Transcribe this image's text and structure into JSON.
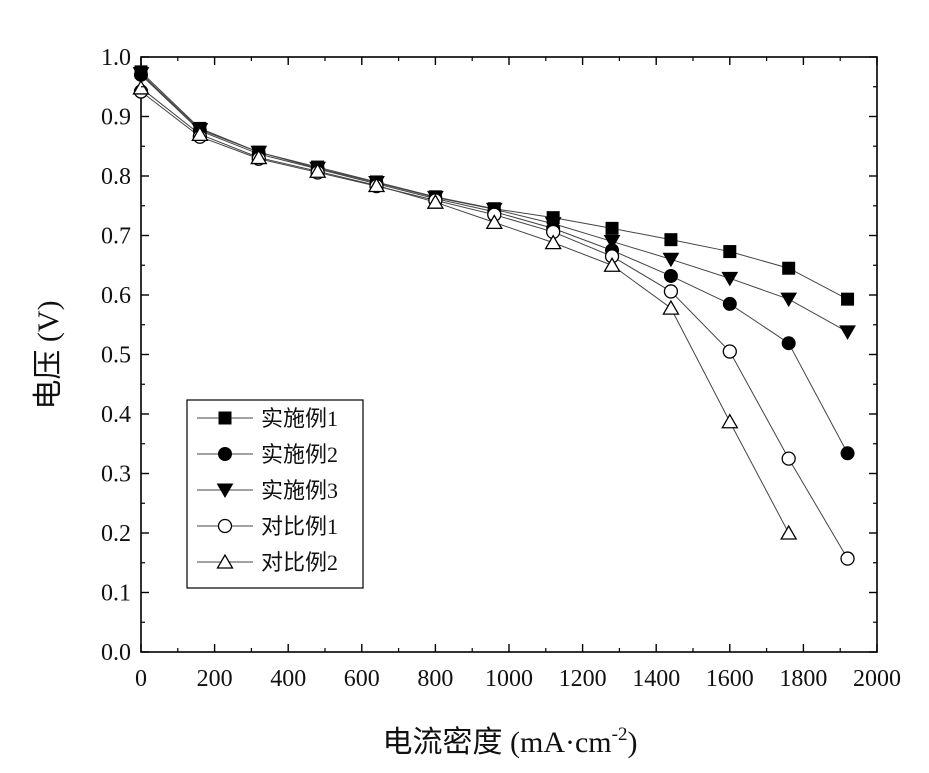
{
  "chart_data": {
    "type": "line",
    "xlabel": "电流密度 (mA·cm",
    "xlabel_sup": "-2",
    "xlabel_close": ")",
    "ylabel": "电压 (V)",
    "xlim": [
      0,
      2000
    ],
    "ylim": [
      0.0,
      1.0
    ],
    "xticks": [
      "0",
      "200",
      "400",
      "600",
      "800",
      "1000",
      "1200",
      "1400",
      "1600",
      "1800",
      "2000"
    ],
    "yticks": [
      "0.0",
      "0.1",
      "0.2",
      "0.3",
      "0.4",
      "0.5",
      "0.6",
      "0.7",
      "0.8",
      "0.9",
      "1.0"
    ],
    "grid": false,
    "legend_position": "lower-left",
    "series": [
      {
        "name": "实施例1",
        "marker": "square-filled",
        "x": [
          0,
          160,
          320,
          480,
          640,
          800,
          960,
          1120,
          1280,
          1440,
          1600,
          1760,
          1920
        ],
        "y": [
          0.975,
          0.88,
          0.84,
          0.815,
          0.79,
          0.765,
          0.745,
          0.73,
          0.712,
          0.693,
          0.673,
          0.645,
          0.593
        ]
      },
      {
        "name": "实施例2",
        "marker": "circle-filled",
        "x": [
          0,
          160,
          320,
          480,
          640,
          800,
          960,
          1120,
          1280,
          1440,
          1600,
          1760,
          1920
        ],
        "y": [
          0.97,
          0.876,
          0.837,
          0.812,
          0.787,
          0.762,
          0.74,
          0.712,
          0.675,
          0.632,
          0.585,
          0.519,
          0.334
        ]
      },
      {
        "name": "实施例3",
        "marker": "triangle-down-filled",
        "x": [
          0,
          160,
          320,
          480,
          640,
          800,
          960,
          1120,
          1280,
          1440,
          1600,
          1760,
          1920
        ],
        "y": [
          0.972,
          0.878,
          0.84,
          0.813,
          0.789,
          0.764,
          0.744,
          0.72,
          0.69,
          0.66,
          0.628,
          0.593,
          0.538
        ]
      },
      {
        "name": "对比例1",
        "marker": "circle-open",
        "x": [
          0,
          160,
          320,
          480,
          640,
          800,
          960,
          1120,
          1280,
          1440,
          1600,
          1760,
          1920
        ],
        "y": [
          0.942,
          0.866,
          0.829,
          0.806,
          0.783,
          0.759,
          0.735,
          0.706,
          0.665,
          0.606,
          0.505,
          0.325,
          0.157
        ]
      },
      {
        "name": "对比例2",
        "marker": "triangle-up-open",
        "x": [
          0,
          160,
          320,
          480,
          640,
          800,
          960,
          1120,
          1280,
          1440,
          1600,
          1760
        ],
        "y": [
          0.948,
          0.87,
          0.831,
          0.808,
          0.784,
          0.756,
          0.722,
          0.688,
          0.65,
          0.578,
          0.387,
          0.2
        ]
      }
    ]
  }
}
